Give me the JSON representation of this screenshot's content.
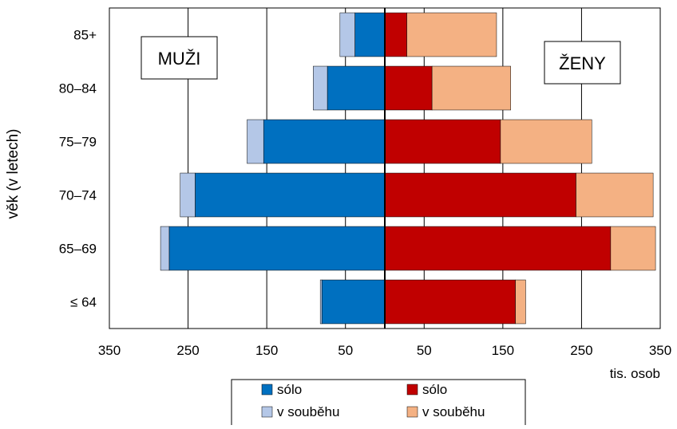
{
  "chart_data": {
    "type": "bar",
    "orientation": "horizontal",
    "style": "population-pyramid-stacked",
    "categories": [
      "≤ 64",
      "65–69",
      "70–74",
      "75–79",
      "80–84",
      "85+"
    ],
    "ylabel": "věk (v letech)",
    "xlabel": "tis. osob",
    "xlim": [
      -350,
      350
    ],
    "x_ticks": [
      -350,
      -250,
      -150,
      -50,
      50,
      150,
      250,
      350
    ],
    "x_tick_labels": [
      "350",
      "250",
      "150",
      "50",
      "50",
      "150",
      "250",
      "350"
    ],
    "vertical_grid": true,
    "panel_labels": {
      "left": "MUŽI",
      "right": "ŽENY"
    },
    "series": [
      {
        "group": "MUŽI",
        "name": "sólo",
        "color": "#0070C0",
        "values": [
          80,
          274,
          241,
          154,
          73,
          38
        ]
      },
      {
        "group": "MUŽI",
        "name": "v souběhu",
        "color": "#B4C7E7",
        "values": [
          2,
          11,
          19,
          21,
          18,
          19
        ]
      },
      {
        "group": "ŽENY",
        "name": "sólo",
        "color": "#C00000",
        "values": [
          166,
          287,
          243,
          147,
          60,
          28
        ]
      },
      {
        "group": "ŽENY",
        "name": "v souběhu",
        "color": "#F4B183",
        "values": [
          13,
          57,
          98,
          116,
          100,
          114
        ]
      }
    ],
    "legend": {
      "placement": "bottom-center",
      "entries": [
        {
          "label": "sólo",
          "color": "#0070C0"
        },
        {
          "label": "sólo",
          "color": "#C00000"
        },
        {
          "label": "v souběhu",
          "color": "#B4C7E7"
        },
        {
          "label": "v souběhu",
          "color": "#F4B183"
        }
      ]
    }
  }
}
